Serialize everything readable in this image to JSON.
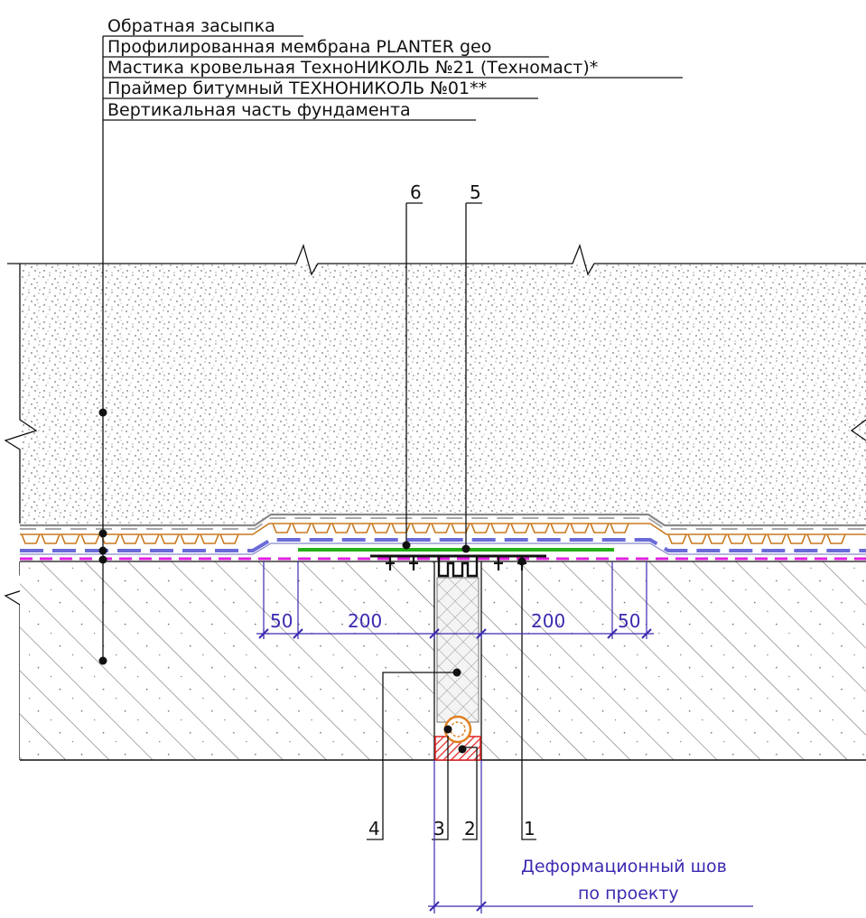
{
  "callouts": [
    "Обратная засыпка",
    "Профилированная мембрана PLANTER geo",
    "Мастика кровельная ТехноНИКОЛЬ №21 (Техномаст)*",
    "Праймер битумный ТЕХНОНИКОЛЬ №01**",
    "Вертикальная часть фундамента"
  ],
  "markers": [
    "6",
    "5",
    "4",
    "3",
    "2",
    "1"
  ],
  "dimensions": [
    "50",
    "200",
    "200",
    "50"
  ],
  "joint_note": [
    "Деформационный шов",
    "по проекту"
  ],
  "colors": {
    "line": "#111111",
    "dimension": "#3a2ab0",
    "membrane": "#c8781e",
    "mastic": "#6a6ad8",
    "primer": "#e020e0",
    "tape": "#22b014",
    "cord_fill": "#e02020",
    "backer_rod": "#e08020"
  }
}
